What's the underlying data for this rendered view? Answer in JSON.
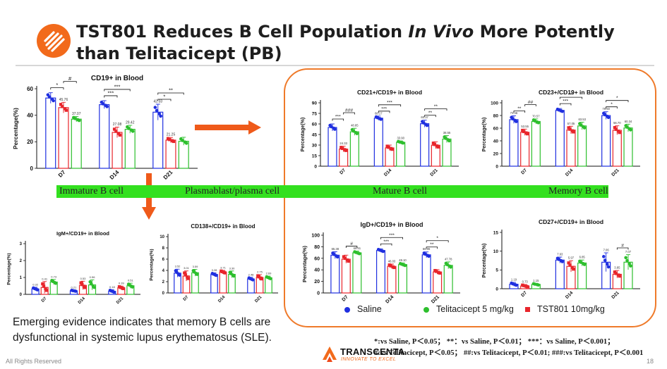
{
  "slide": {
    "title_part1": "TST801 Reduces B Cell Population ",
    "title_italic": "In Vivo",
    "title_part2": " More Potently than Telitacicept (PB)",
    "bottom_text": "Emerging evidence indicates that memory B cells are dysfunctional in systemic lupus erythematosus (SLE).",
    "footnote_1": "*:vs Saline, P＜0.05； **：vs Saline, P＜0.01； ***：vs Saline, P＜0.001；",
    "footnote_2": "#:vs Telitacicept, P＜0.05； ##:vs Telitacicept, P＜0.01; ###:vs Telitacicept, P＜0.001",
    "footer_left": "All Rights Reserved",
    "page_number": "18",
    "brand_name": "TRANSCENTA",
    "brand_tagline": "INNOVATE TO EXCEL",
    "logo_icon": "transcenta-swirl-icon",
    "arrow_icon": "orange-arrow-icon"
  },
  "band_labels": [
    "Immature B cell",
    "Plasmablast/plasma cell",
    "Mature B cell",
    "Memory B cell"
  ],
  "legend": [
    {
      "label": "Saline",
      "color": "#1f2fe0",
      "marker": "circle"
    },
    {
      "label": "Telitacicept 5 mg/kg",
      "color": "#2dbf2d",
      "marker": "circle"
    },
    {
      "label": "TST801 10mg/kg",
      "color": "#e8252b",
      "marker": "square"
    }
  ],
  "colors": {
    "saline": "#1f2fe0",
    "telitacicept": "#2dbf2d",
    "tst801": "#e8252b",
    "accent": "#ef7a2a",
    "band": "#33e01f"
  },
  "chart_data": [
    {
      "id": "cd19",
      "type": "bar",
      "title": "CD19+ in Blood",
      "ylabel": "Percentage(%)",
      "categories": [
        "D7",
        "D14",
        "D21"
      ],
      "ylim": [
        0,
        60
      ],
      "yticks": [
        0,
        20,
        40,
        60
      ],
      "series_order": [
        "saline",
        "tst801",
        "telitacicept"
      ],
      "series": [
        {
          "key": "saline",
          "values": [
            53,
            48,
            42.33
          ],
          "errors": [
            4,
            3,
            6
          ],
          "labels": [
            "",
            "",
            "42.33"
          ]
        },
        {
          "key": "tst801",
          "values": [
            45.76,
            27.08,
            21.25
          ],
          "errors": [
            4,
            4,
            2
          ],
          "labels": [
            "45.76",
            "27.08",
            "21.25"
          ]
        },
        {
          "key": "telitacicept",
          "values": [
            37.07,
            29.42,
            20.4
          ],
          "errors": [
            2,
            3,
            3
          ],
          "labels": [
            "37.07",
            "29.42",
            ""
          ]
        }
      ],
      "sig": [
        {
          "group": 0,
          "from": 0,
          "to": 1,
          "text": "*"
        },
        {
          "group": 0,
          "from": 1,
          "to": 2,
          "text": "#"
        },
        {
          "group": 1,
          "from": 0,
          "to": 2,
          "text": "***"
        },
        {
          "group": 1,
          "from": 0,
          "to": 1,
          "text": "***"
        },
        {
          "group": 2,
          "from": 0,
          "to": 2,
          "text": "**"
        },
        {
          "group": 2,
          "from": 0,
          "to": 1,
          "text": "*"
        }
      ]
    },
    {
      "id": "cd21",
      "type": "bar",
      "title": "CD21+/CD19+ in Blood",
      "ylabel": "Percentage(%)",
      "categories": [
        "D7",
        "D14",
        "D21"
      ],
      "ylim": [
        0,
        90
      ],
      "yticks": [
        0,
        15,
        30,
        45,
        60,
        75,
        90
      ],
      "series_order": [
        "saline",
        "tst801",
        "telitacicept"
      ],
      "series": [
        {
          "key": "saline",
          "values": [
            55,
            68.17,
            60.37
          ],
          "errors": [
            5,
            3,
            5
          ],
          "labels": [
            "",
            "68.17",
            "60.37"
          ]
        },
        {
          "key": "tst801",
          "values": [
            24.33,
            26,
            29.75
          ],
          "errors": [
            4,
            4,
            5
          ],
          "labels": [
            "24.33",
            "",
            ""
          ]
        },
        {
          "key": "telitacicept",
          "values": [
            48.85,
            33.9,
            38.55
          ],
          "errors": [
            5,
            2,
            5
          ],
          "labels": [
            "48.85",
            "33.90",
            "38.55"
          ]
        }
      ],
      "sig": [
        {
          "group": 0,
          "from": 0,
          "to": 1,
          "text": "***"
        },
        {
          "group": 0,
          "from": 1,
          "to": 2,
          "text": "###"
        },
        {
          "group": 1,
          "from": 0,
          "to": 2,
          "text": "***"
        },
        {
          "group": 1,
          "from": 0,
          "to": 1,
          "text": "***"
        },
        {
          "group": 2,
          "from": 0,
          "to": 2,
          "text": "**"
        },
        {
          "group": 2,
          "from": 0,
          "to": 1,
          "text": "**"
        }
      ]
    },
    {
      "id": "cd23",
      "type": "bar",
      "title": "CD23+/CD19+ in Blood",
      "ylabel": "Percentage(%)",
      "categories": [
        "D7",
        "D14",
        "D21"
      ],
      "ylim": [
        0,
        100
      ],
      "yticks": [
        0,
        20,
        40,
        60,
        80,
        100
      ],
      "series_order": [
        "saline",
        "tst801",
        "telitacicept"
      ],
      "series": [
        {
          "key": "saline",
          "values": [
            73.46,
            88,
            79.93
          ],
          "errors": [
            6,
            3,
            6
          ],
          "labels": [
            "73.46",
            "",
            "79.93"
          ]
        },
        {
          "key": "tst801",
          "values": [
            53.55,
            57.05,
            56.7
          ],
          "errors": [
            5,
            6,
            7
          ],
          "labels": [
            "53.55",
            "57.05",
            "56.70"
          ]
        },
        {
          "key": "telitacicept",
          "values": [
            70.57,
            63.53,
            60.34
          ],
          "errors": [
            4,
            6,
            6
          ],
          "labels": [
            "70.57",
            "63.53",
            "60.34"
          ]
        }
      ],
      "sig": [
        {
          "group": 0,
          "from": 0,
          "to": 1,
          "text": "**"
        },
        {
          "group": 0,
          "from": 1,
          "to": 2,
          "text": "##"
        },
        {
          "group": 1,
          "from": 0,
          "to": 2,
          "text": "***"
        },
        {
          "group": 1,
          "from": 0,
          "to": 1,
          "text": "***"
        },
        {
          "group": 2,
          "from": 0,
          "to": 2,
          "text": "*"
        },
        {
          "group": 2,
          "from": 0,
          "to": 1,
          "text": "*"
        }
      ]
    },
    {
      "id": "igm",
      "type": "bar",
      "title": "IgM+/CD19+ in Blood",
      "ylabel": "Percentage(%)",
      "categories": [
        "D7",
        "D14",
        "D21"
      ],
      "ylim": [
        0,
        3
      ],
      "yticks": [
        0,
        1,
        2,
        3
      ],
      "series_order": [
        "saline",
        "tst801",
        "telitacicept"
      ],
      "series": [
        {
          "key": "saline",
          "values": [
            0.32,
            0.21,
            0.18
          ],
          "errors": [
            0.1,
            0.05,
            0.1
          ],
          "labels": [
            "0.32",
            "0.21",
            "0.18"
          ]
        },
        {
          "key": "tst801",
          "values": [
            0.41,
            0.53,
            0.39
          ],
          "errors": [
            0.35,
            0.25,
            0.1
          ],
          "labels": [
            "0.41",
            "0.53",
            "0.39"
          ]
        },
        {
          "key": "telitacicept",
          "values": [
            0.73,
            0.56,
            0.51
          ],
          "errors": [
            0.15,
            0.3,
            0.15
          ],
          "labels": [
            "0.73",
            "0.56",
            "0.51"
          ]
        }
      ],
      "sig": []
    },
    {
      "id": "cd138",
      "type": "bar",
      "title": "CD138+/CD19+ in Blood",
      "ylabel": "Percentage(%)",
      "categories": [
        "D7",
        "D14",
        "D21"
      ],
      "ylim": [
        0,
        10
      ],
      "yticks": [
        0,
        2,
        4,
        6,
        8,
        10
      ],
      "series_order": [
        "saline",
        "tst801",
        "telitacicept"
      ],
      "series": [
        {
          "key": "saline",
          "values": [
            3.52,
            3.28,
            2.48
          ],
          "errors": [
            0.7,
            0.3,
            0.3
          ],
          "labels": [
            "3.52",
            "3.28",
            "2.48"
          ]
        },
        {
          "key": "tst801",
          "values": [
            3.01,
            3.71,
            2.75
          ],
          "errors": [
            0.9,
            0.3,
            0.5
          ],
          "labels": [
            "3.01",
            "3.71",
            "2.75"
          ]
        },
        {
          "key": "telitacicept",
          "values": [
            3.59,
            3.3,
            2.69
          ],
          "errors": [
            0.6,
            0.6,
            0.3
          ],
          "labels": [
            "3.59",
            "3.30",
            "2.69"
          ]
        }
      ],
      "sig": []
    },
    {
      "id": "igd",
      "type": "bar",
      "title": "IgD+/CD19+ in Blood",
      "ylabel": "Percentage(%)",
      "categories": [
        "D7",
        "D14",
        "D21"
      ],
      "ylim": [
        0,
        100
      ],
      "yticks": [
        0,
        20,
        40,
        60,
        80,
        100
      ],
      "series_order": [
        "saline",
        "tst801",
        "telitacicept"
      ],
      "series": [
        {
          "key": "saline",
          "values": [
            65.38,
            73.5,
            66.06
          ],
          "errors": [
            6,
            3,
            5
          ],
          "labels": [
            "65.38",
            "",
            "66.06"
          ]
        },
        {
          "key": "tst801",
          "values": [
            58.5,
            46.03,
            36.42
          ],
          "errors": [
            7,
            4,
            4
          ],
          "labels": [
            "",
            "46.03",
            ""
          ]
        },
        {
          "key": "telitacicept",
          "values": [
            69.51,
            49.1,
            47.78
          ],
          "errors": [
            3,
            3,
            6
          ],
          "labels": [
            "69.51",
            "49.10",
            "47.78"
          ]
        }
      ],
      "sig": [
        {
          "group": 0,
          "from": 1,
          "to": 2,
          "text": "#"
        },
        {
          "group": 1,
          "from": 0,
          "to": 2,
          "text": "***"
        },
        {
          "group": 1,
          "from": 0,
          "to": 1,
          "text": "***"
        },
        {
          "group": 2,
          "from": 0,
          "to": 2,
          "text": "*"
        },
        {
          "group": 2,
          "from": 0,
          "to": 1,
          "text": "**"
        }
      ]
    },
    {
      "id": "cd27",
      "type": "bar",
      "title": "CD27+/CD19+ in Blood",
      "ylabel": "Percentage(%)",
      "categories": [
        "D7",
        "D14",
        "D21"
      ],
      "ylim": [
        0,
        15
      ],
      "yticks": [
        0,
        5,
        10,
        15
      ],
      "series_order": [
        "saline",
        "tst801",
        "telitacicept"
      ],
      "series": [
        {
          "key": "saline",
          "values": [
            1.19,
            7.63,
            7.06
          ],
          "errors": [
            0.5,
            0.8,
            2.5
          ],
          "labels": [
            "1.19",
            "7.63",
            "7.06"
          ]
        },
        {
          "key": "tst801",
          "values": [
            0.73,
            5.97,
            3.85
          ],
          "errors": [
            0.4,
            1.5,
            1
          ],
          "labels": [
            "0.73",
            "5.97",
            "3.85"
          ]
        },
        {
          "key": "telitacicept",
          "values": [
            1.15,
            6.85,
            7.07
          ],
          "errors": [
            0.3,
            0.8,
            2
          ],
          "labels": [
            "1.15",
            "6.85",
            "7.07"
          ]
        }
      ],
      "sig": [
        {
          "group": 2,
          "from": 1,
          "to": 2,
          "text": "#"
        }
      ]
    }
  ]
}
